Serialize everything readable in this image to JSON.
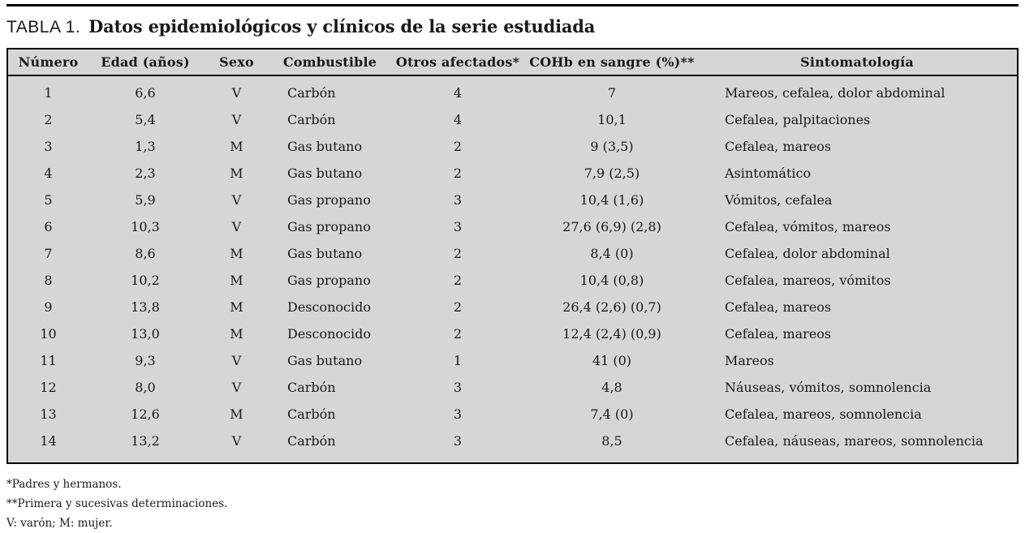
{
  "page": {
    "title_label": "TABLA 1.",
    "title_text": "Datos epidemiológicos y clínicos de la serie estudiada"
  },
  "table": {
    "columns": [
      "Número",
      "Edad (años)",
      "Sexo",
      "Combustible",
      "Otros afectados*",
      "COHb en sangre (%)**",
      "Sintomatología"
    ],
    "rows": [
      [
        "1",
        "6,6",
        "V",
        "Carbón",
        "4",
        "7",
        "Mareos, cefalea, dolor abdominal"
      ],
      [
        "2",
        "5,4",
        "V",
        "Carbón",
        "4",
        "10,1",
        "Cefalea, palpitaciones"
      ],
      [
        "3",
        "1,3",
        "M",
        "Gas butano",
        "2",
        "9 (3,5)",
        "Cefalea, mareos"
      ],
      [
        "4",
        "2,3",
        "M",
        "Gas butano",
        "2",
        "7,9 (2,5)",
        "Asintomático"
      ],
      [
        "5",
        "5,9",
        "V",
        "Gas propano",
        "3",
        "10,4 (1,6)",
        "Vómitos, cefalea"
      ],
      [
        "6",
        "10,3",
        "V",
        "Gas propano",
        "3",
        "27,6 (6,9) (2,8)",
        "Cefalea, vómitos, mareos"
      ],
      [
        "7",
        "8,6",
        "M",
        "Gas butano",
        "2",
        "8,4 (0)",
        "Cefalea, dolor abdominal"
      ],
      [
        "8",
        "10,2",
        "M",
        "Gas propano",
        "2",
        "10,4 (0,8)",
        "Cefalea, mareos, vómitos"
      ],
      [
        "9",
        "13,8",
        "M",
        "Desconocido",
        "2",
        "26,4 (2,6) (0,7)",
        "Cefalea, mareos"
      ],
      [
        "10",
        "13,0",
        "M",
        "Desconocido",
        "2",
        "12,4 (2,4) (0,9)",
        "Cefalea, mareos"
      ],
      [
        "11",
        "9,3",
        "V",
        "Gas butano",
        "1",
        "41 (0)",
        "Mareos"
      ],
      [
        "12",
        "8,0",
        "V",
        "Carbón",
        "3",
        "4,8",
        "Náuseas, vómitos, somnolencia"
      ],
      [
        "13",
        "12,6",
        "M",
        "Carbón",
        "3",
        "7,4 (0)",
        "Cefalea, mareos, somnolencia"
      ],
      [
        "14",
        "13,2",
        "V",
        "Carbón",
        "3",
        "8,5",
        "Cefalea, náuseas, mareos, somnolencia"
      ]
    ]
  },
  "footnotes": [
    "*Padres y hermanos.",
    "**Primera y sucesivas determinaciones.",
    "V: varón; M: mujer."
  ],
  "colors": {
    "table_bg": "#d6d6d4",
    "border": "#000000",
    "page_bg": "#ffffff",
    "text": "#1a1a1a"
  }
}
